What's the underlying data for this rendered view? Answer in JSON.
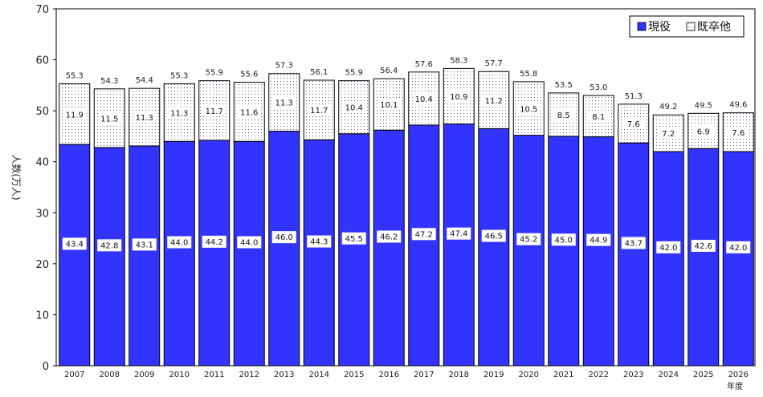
{
  "chart_data": {
    "type": "bar",
    "stacked": true,
    "title": "",
    "xlabel": "年度",
    "ylabel": "人数(万人)",
    "ylim": [
      0,
      70
    ],
    "yticks": [
      0,
      10,
      20,
      30,
      40,
      50,
      60,
      70
    ],
    "categories": [
      "2007",
      "2008",
      "2009",
      "2010",
      "2011",
      "2012",
      "2013",
      "2014",
      "2015",
      "2016",
      "2017",
      "2018",
      "2019",
      "2020",
      "2021",
      "2022",
      "2023",
      "2024",
      "2025",
      "2026"
    ],
    "series": [
      {
        "name": "現役",
        "color": "#3333ff",
        "values": [
          43.4,
          42.8,
          43.1,
          44.0,
          44.2,
          44.0,
          46.0,
          44.3,
          45.5,
          46.2,
          47.2,
          47.4,
          46.5,
          45.2,
          45.0,
          44.9,
          43.7,
          42.0,
          42.6,
          42.0
        ],
        "labels": [
          "43.4",
          "42.8",
          "43.1",
          "44.0",
          "44.2",
          "44.0",
          "46.0",
          "44.3",
          "45.5",
          "46.2",
          "47.2",
          "47.4",
          "46.5",
          "45.2",
          "45.0",
          "44.9",
          "43.7",
          "42.0",
          "42.6",
          "42.0"
        ]
      },
      {
        "name": "既卒他",
        "color": "#ffffff",
        "values": [
          11.9,
          11.5,
          11.3,
          11.3,
          11.7,
          11.6,
          11.3,
          11.7,
          10.4,
          10.1,
          10.4,
          10.9,
          11.2,
          10.5,
          8.5,
          8.1,
          7.6,
          7.2,
          6.9,
          7.6
        ],
        "labels": [
          "11.9",
          "11.5",
          "11.3",
          "11.3",
          "11.7",
          "11.6",
          "11.3",
          "11.7",
          "10.4",
          "10.1",
          "10.4",
          "10.9",
          "11.2",
          "10.5",
          "8.5",
          "8.1",
          "7.6",
          "7.2",
          "6.9",
          "7.6"
        ]
      }
    ],
    "totals": [
      "55.3",
      "54.3",
      "54.4",
      "55.3",
      "55.9",
      "55.6",
      "57.3",
      "56.1",
      "55.9",
      "56.4",
      "57.6",
      "58.3",
      "57.7",
      "55.8",
      "53.5",
      "53.0",
      "51.3",
      "49.2",
      "49.5",
      "49.6"
    ],
    "legend": {
      "position": "top-right",
      "entries": [
        "現役",
        "既卒他"
      ]
    }
  }
}
